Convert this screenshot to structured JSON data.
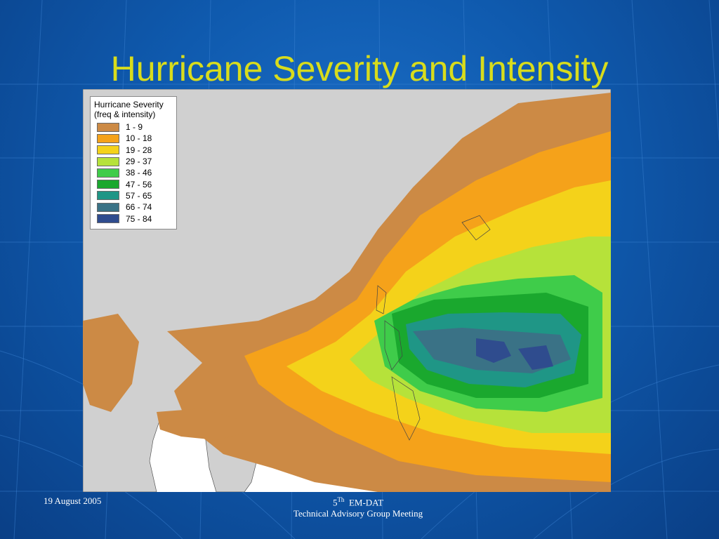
{
  "slide": {
    "title": "Hurricane Severity and Intensity",
    "background_color": "#1363b8",
    "title_color": "#d8dc1c"
  },
  "map": {
    "legend": {
      "title": "Hurricane Severity",
      "subtitle": "(freq & intensity)",
      "classes": [
        {
          "label": "1 - 9",
          "color": "#cc8a45"
        },
        {
          "label": "10 - 18",
          "color": "#f5a21a"
        },
        {
          "label": "19 - 28",
          "color": "#f4d21a"
        },
        {
          "label": "29 - 37",
          "color": "#b6e23a"
        },
        {
          "label": "38 - 46",
          "color": "#3fcc4a"
        },
        {
          "label": "47 - 56",
          "color": "#1aa82e"
        },
        {
          "label": "57 - 65",
          "color": "#1f9686"
        },
        {
          "label": "66 - 74",
          "color": "#3a7286"
        },
        {
          "label": "75 - 84",
          "color": "#2f4c8e"
        }
      ]
    },
    "land_color": "#d0d0d0",
    "sea_color": "#ffffff"
  },
  "footer": {
    "date": "19 August 2005",
    "ordinal": "5",
    "ordinal_suffix": "Th",
    "event": "EM-DAT",
    "event_name": "Technical Advisory Group Meeting"
  }
}
